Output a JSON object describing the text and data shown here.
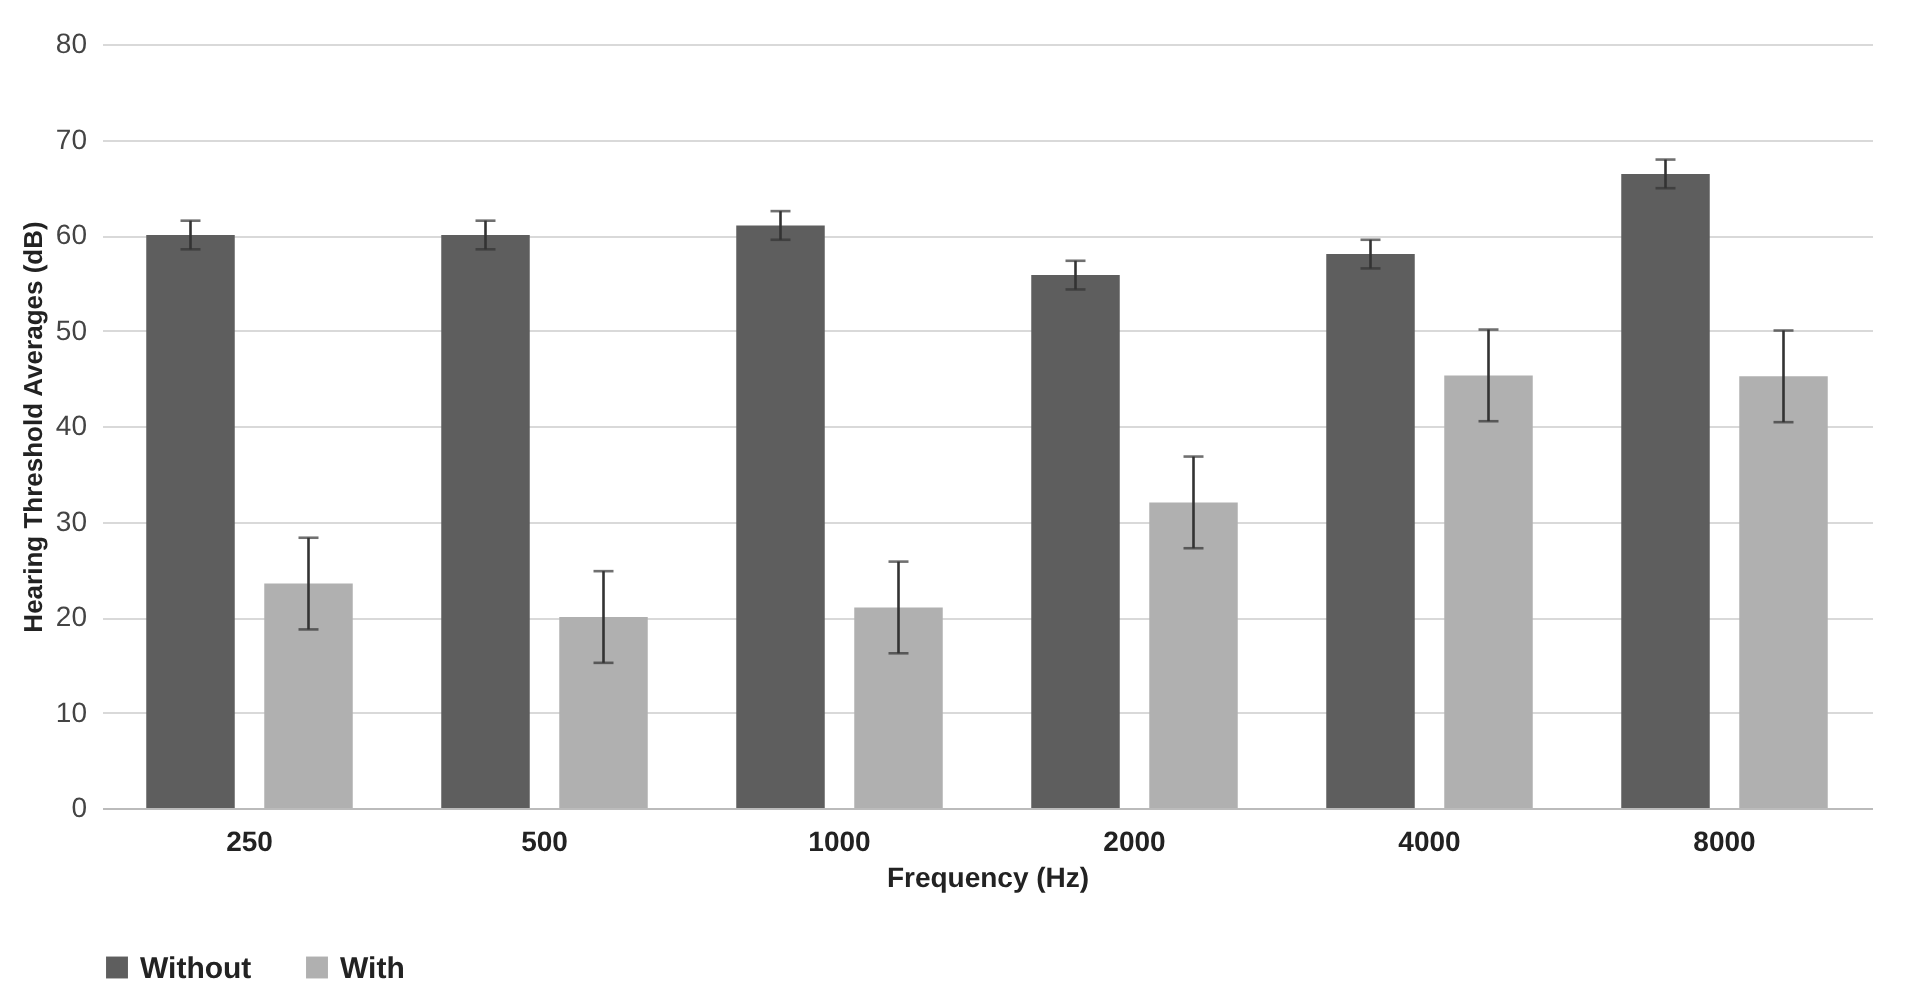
{
  "chart_data": {
    "type": "bar",
    "xlabel": "Frequency (Hz)",
    "ylabel": "Hearing Threshold  Averages (dB)",
    "categories": [
      "250",
      "500",
      "1000",
      "2000",
      "4000",
      "8000"
    ],
    "series": [
      {
        "name": "Without",
        "color": "#5e5e5e",
        "values": [
          60,
          60,
          61,
          55.8,
          58,
          66.4
        ],
        "errors": [
          1.5,
          1.5,
          1.5,
          1.5,
          1.5,
          1.5
        ]
      },
      {
        "name": "With",
        "color": "#b0b0b0",
        "values": [
          23.5,
          20,
          21,
          32,
          45.3,
          45.2
        ],
        "errors": [
          4.8,
          4.8,
          4.8,
          4.8,
          4.8,
          4.8
        ]
      }
    ],
    "ylim": [
      0,
      80
    ],
    "yticks": [
      0,
      10,
      20,
      30,
      40,
      50,
      60,
      70,
      80
    ],
    "grid": "y",
    "legend": "bottom"
  }
}
